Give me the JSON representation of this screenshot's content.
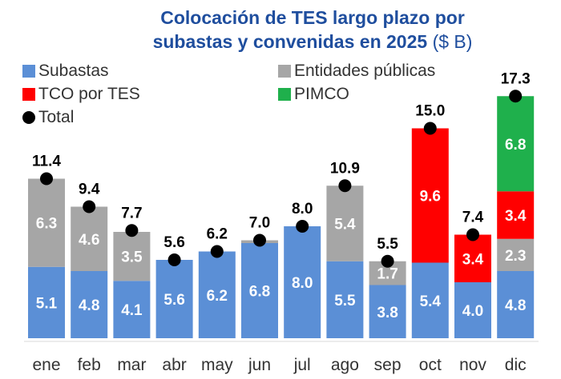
{
  "chart_data": {
    "type": "bar",
    "stacked": true,
    "title_line1": "Colocación de TES largo plazo por",
    "title_line2": "subastas y convenidas en 2025",
    "unit": "($ B)",
    "categories": [
      "ene",
      "feb",
      "mar",
      "abr",
      "may",
      "jun",
      "jul",
      "ago",
      "sep",
      "oct",
      "nov",
      "dic"
    ],
    "series": [
      {
        "name": "Subastas",
        "color": "#5b8fd6",
        "values": [
          5.1,
          4.8,
          4.1,
          5.6,
          6.2,
          6.8,
          8.0,
          5.5,
          3.8,
          5.4,
          4.0,
          4.8
        ]
      },
      {
        "name": "Entidades públicas",
        "color": "#a6a6a6",
        "values": [
          6.3,
          4.6,
          3.5,
          0,
          0,
          0.2,
          0,
          5.4,
          1.7,
          0,
          0,
          2.3
        ]
      },
      {
        "name": "TCO por TES",
        "color": "#ff0000",
        "values": [
          0,
          0,
          0,
          0,
          0,
          0,
          0,
          0,
          0,
          9.6,
          3.4,
          3.4
        ]
      },
      {
        "name": "PIMCO",
        "color": "#1fb04c",
        "values": [
          0,
          0,
          0,
          0,
          0,
          0,
          0,
          0,
          0,
          0,
          0,
          6.8
        ]
      }
    ],
    "total": {
      "name": "Total",
      "color": "#000000",
      "values": [
        11.4,
        9.4,
        7.7,
        5.6,
        6.2,
        7.0,
        8.0,
        10.9,
        5.5,
        15.0,
        7.4,
        17.3
      ]
    },
    "label_threshold": 1.0,
    "grid": false,
    "legend_position": "top-left"
  }
}
